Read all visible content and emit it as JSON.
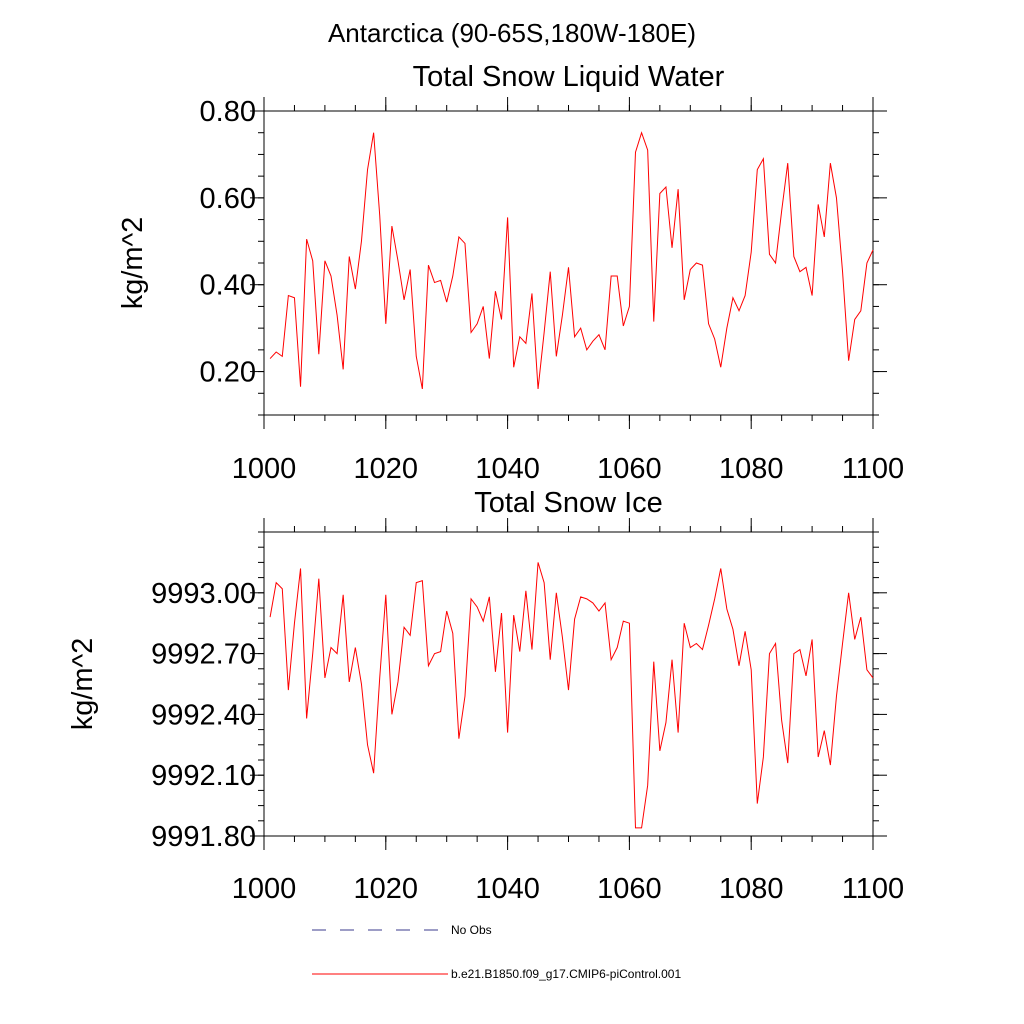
{
  "page_title": "Antarctica (90-65S,180W-180E)",
  "colors": {
    "series_line": "#ff0000",
    "obs_line": "#3b3b8c",
    "axis": "#000000"
  },
  "legend": {
    "obs_label": "No Obs",
    "series_label": "b.e21.B1850.f09_g17.CMIP6-piControl.001"
  },
  "chart_data": [
    {
      "type": "line",
      "title": "Total Snow Liquid Water",
      "xlabel": "",
      "ylabel": "kg/m^2",
      "xlim": [
        1000,
        1100
      ],
      "ylim": [
        0.1,
        0.8
      ],
      "xticks": [
        1000,
        1020,
        1040,
        1060,
        1080,
        1100
      ],
      "xtick_labels": [
        "1000",
        "1020",
        "1040",
        "1060",
        "1080",
        "1100"
      ],
      "yticks": [
        0.2,
        0.4,
        0.6,
        0.8
      ],
      "ytick_labels": [
        "0.20",
        "0.40",
        "0.60",
        "0.80"
      ],
      "y_minor_step": 0.05,
      "x_minor_step": 5,
      "series": [
        {
          "name": "b.e21.B1850.f09_g17.CMIP6-piControl.001",
          "x_start": 1001,
          "values": [
            0.23,
            0.245,
            0.235,
            0.375,
            0.37,
            0.165,
            0.505,
            0.455,
            0.24,
            0.455,
            0.42,
            0.33,
            0.205,
            0.465,
            0.39,
            0.5,
            0.665,
            0.75,
            0.56,
            0.31,
            0.535,
            0.455,
            0.365,
            0.435,
            0.235,
            0.16,
            0.445,
            0.405,
            0.41,
            0.36,
            0.42,
            0.51,
            0.495,
            0.29,
            0.31,
            0.35,
            0.23,
            0.385,
            0.32,
            0.555,
            0.21,
            0.28,
            0.265,
            0.38,
            0.16,
            0.29,
            0.43,
            0.235,
            0.33,
            0.44,
            0.28,
            0.3,
            0.25,
            0.27,
            0.285,
            0.25,
            0.42,
            0.42,
            0.305,
            0.35,
            0.705,
            0.75,
            0.71,
            0.315,
            0.61,
            0.625,
            0.485,
            0.62,
            0.365,
            0.435,
            0.45,
            0.445,
            0.31,
            0.275,
            0.21,
            0.3,
            0.37,
            0.34,
            0.375,
            0.475,
            0.665,
            0.69,
            0.47,
            0.45,
            0.57,
            0.68,
            0.465,
            0.43,
            0.44,
            0.375,
            0.585,
            0.51,
            0.68,
            0.6,
            0.43,
            0.225,
            0.32,
            0.34,
            0.45,
            0.48
          ]
        }
      ]
    },
    {
      "type": "line",
      "title": "Total Snow Ice",
      "xlabel": "",
      "ylabel": "kg/m^2",
      "xlim": [
        1000,
        1100
      ],
      "ylim": [
        9991.8,
        9993.3
      ],
      "xticks": [
        1000,
        1020,
        1040,
        1060,
        1080,
        1100
      ],
      "xtick_labels": [
        "1000",
        "1020",
        "1040",
        "1060",
        "1080",
        "1100"
      ],
      "yticks": [
        9991.8,
        9992.1,
        9992.4,
        9992.7,
        9993.0
      ],
      "ytick_labels": [
        "9991.80",
        "9992.10",
        "9992.40",
        "9992.70",
        "9993.00"
      ],
      "y_minor_step": 0.075,
      "x_minor_step": 5,
      "series": [
        {
          "name": "b.e21.B1850.f09_g17.CMIP6-piControl.001",
          "x_start": 1001,
          "values": [
            9992.88,
            9993.05,
            9993.02,
            9992.52,
            9992.85,
            9993.12,
            9992.38,
            9992.7,
            9993.07,
            9992.58,
            9992.73,
            9992.7,
            9992.99,
            9992.56,
            9992.73,
            9992.55,
            9992.25,
            9992.11,
            9992.58,
            9992.99,
            9992.4,
            9992.56,
            9992.83,
            9992.79,
            9993.05,
            9993.06,
            9992.64,
            9992.7,
            9992.71,
            9992.91,
            9992.8,
            9992.28,
            9992.49,
            9992.97,
            9992.93,
            9992.86,
            9992.98,
            9992.61,
            9992.9,
            9992.31,
            9992.89,
            9992.71,
            9993.01,
            9992.72,
            9993.15,
            9993.05,
            9992.67,
            9993.0,
            9992.78,
            9992.52,
            9992.87,
            9992.98,
            9992.97,
            9992.95,
            9992.91,
            9992.95,
            9992.67,
            9992.73,
            9992.86,
            9992.85,
            9991.84,
            9991.84,
            9992.05,
            9992.66,
            9992.22,
            9992.36,
            9992.67,
            9992.31,
            9992.85,
            9992.73,
            9992.75,
            9992.72,
            9992.84,
            9992.97,
            9993.12,
            9992.92,
            9992.82,
            9992.64,
            9992.81,
            9992.62,
            9991.96,
            9992.19,
            9992.7,
            9992.75,
            9992.37,
            9992.16,
            9992.7,
            9992.72,
            9992.59,
            9992.77,
            9992.19,
            9992.32,
            9992.15,
            9992.49,
            9992.75,
            9993.0,
            9992.77,
            9992.88,
            9992.62,
            9992.58
          ]
        }
      ]
    }
  ]
}
